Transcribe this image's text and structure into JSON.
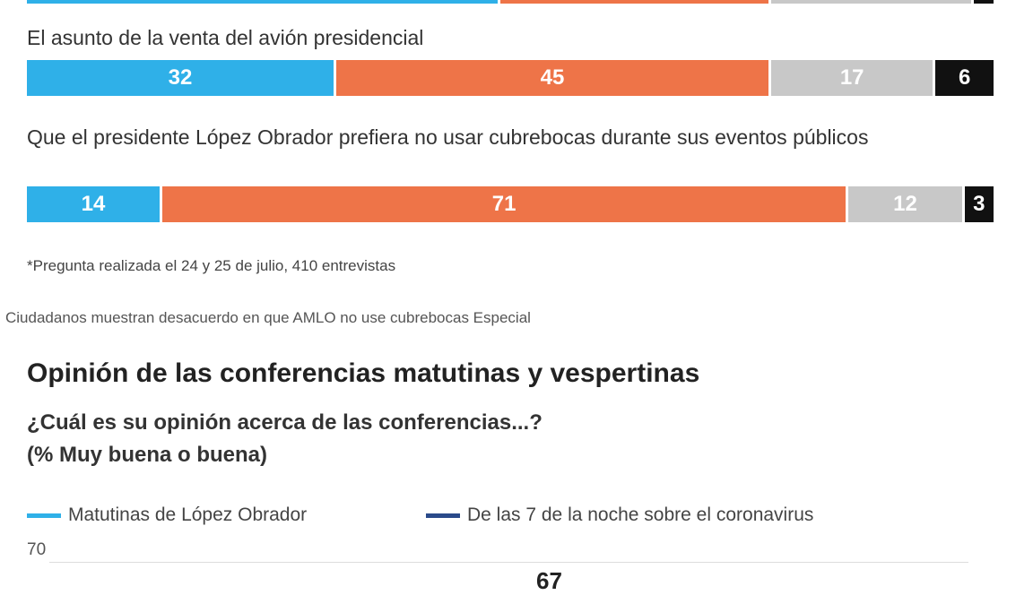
{
  "colors": {
    "blue": "#2fb0e8",
    "orange": "#ee7448",
    "gray": "#c8c8c8",
    "black": "#111111",
    "navy": "#2a4a8a"
  },
  "chart_data": [
    {
      "type": "bar",
      "orientation": "horizontal-stacked-100",
      "categories": [
        "",
        "El asunto de la venta del avión presidencial",
        "Que el presidente López Obrador prefiera no usar cubrebocas durante sus eventos públicos"
      ],
      "series": [
        {
          "values": [
            49,
            32,
            14
          ],
          "color": "#2fb0e8"
        },
        {
          "values": [
            28,
            45,
            71
          ],
          "color": "#ee7448"
        },
        {
          "values": [
            21,
            17,
            12
          ],
          "color": "#c8c8c8"
        },
        {
          "values": [
            2,
            6,
            3
          ],
          "color": "#111111"
        }
      ],
      "note": "*Pregunta realizada el 24 y 25 de julio, 410 entrevistas"
    },
    {
      "type": "line",
      "title": "Opinión de las conferencias matutinas y vespertinas",
      "subtitle_line1": "¿Cuál es su opinión acerca de las conferencias...?",
      "subtitle_line2": "(% Muy buena o buena)",
      "legend": [
        "Matutinas de López Obrador",
        "De las 7 de la noche sobre el coronavirus"
      ],
      "series_colors": [
        "#2fb0e8",
        "#2a4a8a"
      ],
      "y_ticks": [
        "70"
      ],
      "data_labels": [
        "67"
      ],
      "grid": true,
      "legend_position": "top-left"
    }
  ],
  "caption": "Ciudadanos muestran desacuerdo en que AMLO no use cubrebocas Especial"
}
